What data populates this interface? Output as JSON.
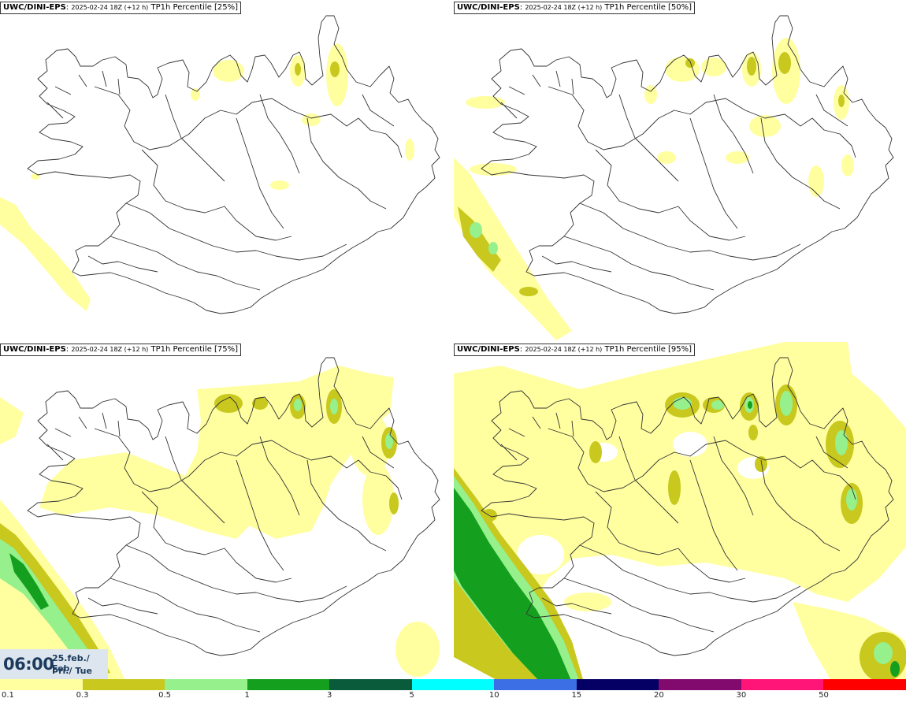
{
  "panels": [
    {
      "model": "UWC/DINI-EPS",
      "run": "2025-02-24 18Z (+12 h)",
      "param": "TP1h Percentile [25%]"
    },
    {
      "model": "UWC/DINI-EPS",
      "run": "2025-02-24 18Z (+12 h)",
      "param": "TP1h Percentile [50%]"
    },
    {
      "model": "UWC/DINI-EPS",
      "run": "2025-02-24 18Z (+12 h)",
      "param": "TP1h Percentile [75%]"
    },
    {
      "model": "UWC/DINI-EPS",
      "run": "2025-02-24 18Z (+12 h)",
      "param": "TP1h Percentile [95%]"
    }
  ],
  "valid_time": {
    "time": "06:00",
    "date": "25.feb./ Feb",
    "weekday": "Þri./ Tue"
  },
  "legend": {
    "labels": [
      "0.1",
      "0.3",
      "0.5",
      "1",
      "3",
      "5",
      "10",
      "15",
      "20",
      "30",
      "50"
    ],
    "colors": [
      "#ffffa0",
      "#c8c81e",
      "#96f08c",
      "#14a01e",
      "#0a5a3c",
      "#00ffff",
      "#3c6ee6",
      "#050064",
      "#820a6e",
      "#ff1478",
      "#ff0000"
    ]
  }
}
